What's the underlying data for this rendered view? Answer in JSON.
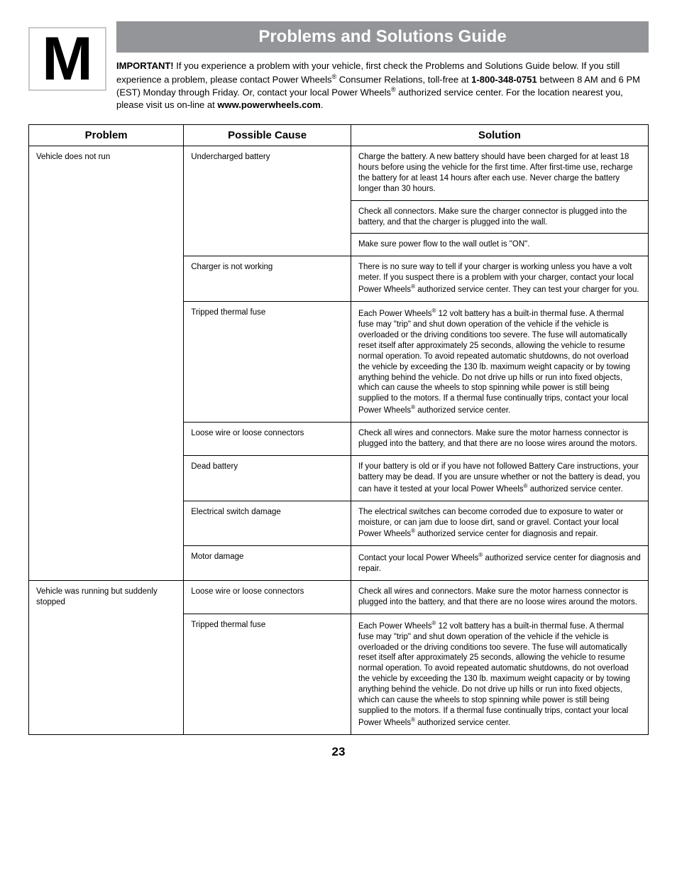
{
  "section_letter": "M",
  "title": "Problems and Solutions Guide",
  "intro_html": "<b>IMPORTANT!</b> If you experience a problem with your vehicle, first check the Problems and Solutions Guide below. If you still experience a problem, please contact Power Wheels<span class=\"sup\">®</span> Consumer Relations, toll-free at <b>1-800-348-0751</b> between 8 AM and 6 PM (EST) Monday through Friday. Or, contact your local Power Wheels<span class=\"sup\">®</span> authorized service center. For the location nearest you, please visit us on-line at <b>www.powerwheels.com</b>.",
  "headers": {
    "problem": "Problem",
    "cause": "Possible Cause",
    "solution": "Solution"
  },
  "page_number": "23",
  "groups": [
    {
      "problem": "Vehicle does not run",
      "cause_groups": [
        {
          "cause": "Undercharged battery",
          "solutions": [
            "Charge the battery. A new battery should have been charged for at least 18 hours before using the vehicle for the first time. After first-time use, recharge the battery for at least 14 hours after each use. Never charge the battery longer than 30 hours.",
            "Check all connectors. Make sure the charger connector is plugged into the battery, and that the charger is plugged into the wall.",
            "Make sure power flow to the wall outlet is \"ON\"."
          ]
        },
        {
          "cause": "Charger is not working",
          "solutions": [
            "There is no sure way to tell if your charger is working unless you have a volt meter. If you suspect there is a problem with your charger, contact your local Power Wheels<span class=\"sup\">®</span> authorized service center. They can test your charger for you."
          ]
        },
        {
          "cause": "Tripped thermal fuse",
          "solutions": [
            "Each Power Wheels<span class=\"sup\">®</span> 12 volt battery has a built-in thermal fuse. A thermal fuse may \"trip\" and shut down operation of the vehicle if the vehicle is overloaded or the driving conditions too severe. The fuse will automatically reset itself after approximately 25 seconds, allowing the vehicle to resume normal operation. To avoid repeated automatic shutdowns, do not overload the vehicle by exceeding the 130 lb. maximum weight capacity or by towing anything behind the vehicle. Do not drive up hills or run into fixed objects, which can cause the wheels to stop spinning while power is still being supplied to the motors. If a thermal fuse continually trips, contact your local Power Wheels<span class=\"sup\">®</span> authorized service center."
          ]
        },
        {
          "cause": "Loose wire or loose connectors",
          "solutions": [
            "Check all wires and connectors. Make sure the motor harness connector is plugged into the battery, and that there are no loose wires around the motors."
          ]
        },
        {
          "cause": "Dead battery",
          "solutions": [
            "If your battery is old or if you have not followed Battery Care instructions, your battery may be dead. If you are unsure whether or not the battery is dead, you can have it tested at your local Power Wheels<span class=\"sup\">®</span> authorized service center."
          ]
        },
        {
          "cause": "Electrical switch damage",
          "solutions": [
            "The electrical switches can become corroded due to exposure to water or moisture, or can jam due to loose dirt, sand or gravel. Contact your local Power Wheels<span class=\"sup\">®</span> authorized service center for diagnosis and repair."
          ]
        },
        {
          "cause": "Motor damage",
          "solutions": [
            "Contact your local Power Wheels<span class=\"sup\">®</span> authorized service center for diagnosis and repair."
          ]
        }
      ]
    },
    {
      "problem": "Vehicle was running but suddenly stopped",
      "cause_groups": [
        {
          "cause": "Loose wire or loose connectors",
          "solutions": [
            "Check all wires and connectors. Make sure the motor harness connector is plugged into the battery, and that there are no loose wires around the motors."
          ]
        },
        {
          "cause": "Tripped thermal fuse",
          "solutions": [
            "Each Power Wheels<span class=\"sup\">®</span> 12 volt battery has a built-in thermal fuse. A thermal fuse may \"trip\" and shut down operation of the vehicle if the vehicle is overloaded or the driving conditions too severe. The fuse will automatically reset itself after approximately 25 seconds, allowing the vehicle to resume normal operation. To avoid repeated automatic shutdowns, do not overload the vehicle by exceeding the 130 lb. maximum weight capacity or by towing anything behind the vehicle. Do not drive up hills or run into fixed objects, which can cause the wheels to stop spinning while power is still being supplied to the motors. If a thermal fuse continually trips, contact your local Power Wheels<span class=\"sup\">®</span> authorized service center."
          ]
        }
      ]
    }
  ]
}
